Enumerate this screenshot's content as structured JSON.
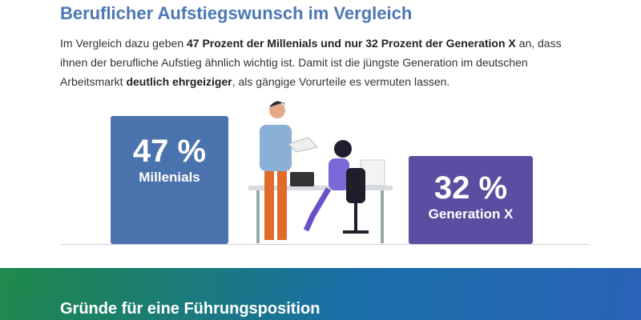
{
  "header": {
    "title": "Beruflicher Aufstiegswunsch im Vergleich"
  },
  "paragraph": [
    "Im Vergleich dazu geben ",
    "47 Prozent der Millenials und nur 32 Prozent der Generation X",
    " an, dass ihnen der berufliche Aufstieg ähnlich wichtig ist. Damit ist die jüngste Generation im deutschen Arbeitsmarkt ",
    "deutlich ehrgeiziger",
    ", als gängige Vorurteile es vermuten lassen."
  ],
  "cards": [
    {
      "value": "47 %",
      "label": "Millenials"
    },
    {
      "value": "32 %",
      "label": "Generation X"
    }
  ],
  "footer": {
    "heading": "Gründe für eine Führungsposition"
  }
}
